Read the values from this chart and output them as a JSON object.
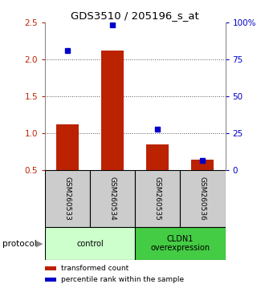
{
  "title": "GDS3510 / 205196_s_at",
  "samples": [
    "GSM260533",
    "GSM260534",
    "GSM260535",
    "GSM260536"
  ],
  "bar_values": [
    1.12,
    2.12,
    0.85,
    0.65
  ],
  "bar_baseline": 0.5,
  "blue_values": [
    2.12,
    2.47,
    1.06,
    0.635
  ],
  "ylim_left": [
    0.5,
    2.5
  ],
  "ylim_right": [
    0,
    100
  ],
  "yticks_left": [
    0.5,
    1.0,
    1.5,
    2.0,
    2.5
  ],
  "yticks_right": [
    0,
    25,
    50,
    75,
    100
  ],
  "ytick_labels_right": [
    "0",
    "25",
    "50",
    "75",
    "100%"
  ],
  "bar_color": "#bb2200",
  "blue_color": "#0000cc",
  "group_labels": [
    "control",
    "CLDN1\noverexpression"
  ],
  "group_ranges": [
    [
      0,
      2
    ],
    [
      2,
      4
    ]
  ],
  "group_color_light": "#ccffcc",
  "group_color_dark": "#44cc44",
  "sample_box_color": "#cccccc",
  "dotted_line_color": "#555555",
  "background_color": "#ffffff",
  "bar_width": 0.5
}
